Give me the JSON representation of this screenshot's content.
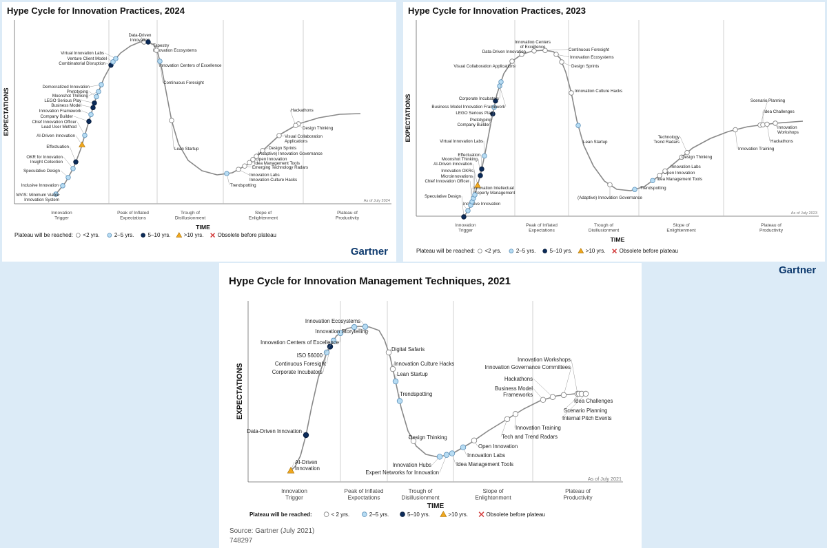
{
  "page_brand": "Gartner",
  "colors": {
    "lt2": "#ffffff",
    "y2_5": "#b7dcf3",
    "y5_10": "#0b2b59",
    "gt10": "#f0a81e",
    "obsolete": "#d23a3a",
    "curve": "#888888",
    "grid": "#bdbdbd"
  },
  "panels": [
    {
      "title": "Hype Cycle for Innovation Practices, 2024",
      "brand": "Gartner",
      "ylabel": "EXPECTATIONS",
      "xlabel": "TIME",
      "asof": "As of July 2024",
      "legend": {
        "title": "Plateau will be reached:",
        "items": [
          {
            "shape": "circle",
            "class": "lt2",
            "label": "<2 yrs."
          },
          {
            "shape": "circle",
            "class": "y2_5",
            "label": "2–5 yrs."
          },
          {
            "shape": "circle",
            "class": "y5_10",
            "label": "5–10 yrs."
          },
          {
            "shape": "triangle",
            "class": "gt10",
            "label": ">10 yrs."
          },
          {
            "shape": "x",
            "class": "obsolete",
            "label": "Obsolete before plateau"
          }
        ]
      },
      "phases": [
        "Innovation\nTrigger",
        "Peak of Inflated\nExpectations",
        "Trough of\nDisillusionment",
        "Slope of\nEnlightenment",
        "Plateau of\nProductivity"
      ],
      "points": [
        {
          "label": "MVIS: Minimum Viable\nInnovation System",
          "class": "y2_5"
        },
        {
          "label": "Inclusive Innovation",
          "class": "y2_5"
        },
        {
          "label": "Speculative Design",
          "class": "y2_5"
        },
        {
          "label": "OKR for Innovation\nInsight Collection",
          "class": "y2_5"
        },
        {
          "label": "Effectuation",
          "class": "y5_10"
        },
        {
          "label": "AI-Driven Innovation",
          "class": "gt10"
        },
        {
          "label": "Chief Innovation Officer\nLead User Method",
          "class": "y2_5"
        },
        {
          "label": "Company Builder",
          "class": "y5_10"
        },
        {
          "label": "Innovation Framework",
          "class": "y2_5"
        },
        {
          "label": "Business Model",
          "class": "y5_10"
        },
        {
          "label": "LEGO Serious Play",
          "class": "y5_10"
        },
        {
          "label": "Pretotyping",
          "class": "y2_5"
        },
        {
          "label": "Moonshot Thinking",
          "class": "y2_5"
        },
        {
          "label": "Democratized Innovation",
          "class": "y2_5"
        },
        {
          "label": "Combinatorial Disruption",
          "class": "y5_10"
        },
        {
          "label": "Venture Client Model",
          "class": "y2_5"
        },
        {
          "label": "Virtual Innovation Labs",
          "class": "y2_5"
        },
        {
          "label": "Data-Driven\nInnovation",
          "class": "lt2"
        },
        {
          "label": "Tapestry\nInnovation Ecosystems",
          "class": "y5_10"
        },
        {
          "label": "Innovation Centers of Excellence",
          "class": "lt2"
        },
        {
          "label": "Continuous Foresight",
          "class": "y2_5"
        },
        {
          "label": "Lean Startup",
          "class": "lt2"
        },
        {
          "label": "Trendspotting",
          "class": "y2_5"
        },
        {
          "label": "Innovation Labs\nInnovation Culture Hacks",
          "class": "lt2"
        },
        {
          "label": "Emerging Technology Radars",
          "class": "lt2"
        },
        {
          "label": "Idea Management Tools",
          "class": "lt2"
        },
        {
          "label": "Open Innovation",
          "class": "lt2"
        },
        {
          "label": "(Adaptive) Innovation Governance",
          "class": "lt2"
        },
        {
          "label": "Design Sprints",
          "class": "lt2"
        },
        {
          "label": "Visual Collaboration\nApplications",
          "class": "lt2"
        },
        {
          "label": "Design Thinking",
          "class": "lt2"
        },
        {
          "label": "Hackathons",
          "class": "lt2"
        }
      ]
    },
    {
      "title": "Hype Cycle for Innovation Practices, 2023",
      "brand": "Gartner",
      "ylabel": "EXPECTATIONS",
      "xlabel": "TIME",
      "asof": "As of July 2023",
      "legend": {
        "title": "Plateau will be reached:",
        "items": [
          {
            "shape": "circle",
            "class": "lt2",
            "label": "<2 yrs."
          },
          {
            "shape": "circle",
            "class": "y2_5",
            "label": "2–5 yrs."
          },
          {
            "shape": "circle",
            "class": "y5_10",
            "label": "5–10 yrs."
          },
          {
            "shape": "triangle",
            "class": "gt10",
            "label": ">10 yrs."
          },
          {
            "shape": "x",
            "class": "obsolete",
            "label": "Obsolete before plateau"
          }
        ]
      },
      "phases": [
        "Innovation\nTrigger",
        "Peak of Inflated\nExpectations",
        "Trough of\nDisillusionment",
        "Slope of\nEnlightenment",
        "Plateau of\nProductivity"
      ],
      "points": [
        {
          "label": "Speculative Design",
          "class": "y5_10"
        },
        {
          "label": "Inclusive Innovation",
          "class": "y2_5"
        },
        {
          "label": "Innovation Intellectual\nProperty Management",
          "class": "y2_5"
        },
        {
          "label": "Chief Innovation Officer",
          "class": "y2_5"
        },
        {
          "label": "Microinnovations",
          "class": "y2_5"
        },
        {
          "label": "Innovation OKRs",
          "class": "y2_5"
        },
        {
          "label": "AI-Driven Innovation",
          "class": "gt10"
        },
        {
          "label": "Moonshot Thinking",
          "class": "y5_10"
        },
        {
          "label": "Effectuation",
          "class": "y5_10"
        },
        {
          "label": "Virtual Innovation Labs",
          "class": "y2_5"
        },
        {
          "label": "Company Builder",
          "class": "y5_10"
        },
        {
          "label": "Pretotyping",
          "class": "y2_5"
        },
        {
          "label": "LEGO Serious Play",
          "class": "y5_10"
        },
        {
          "label": "Business Model Innovation Framework",
          "class": "y2_5"
        },
        {
          "label": "Corporate Incubators",
          "class": "y2_5"
        },
        {
          "label": "Visual Collaboration Applications",
          "class": "lt2"
        },
        {
          "label": "Data-Driven Innovation",
          "class": "lt2"
        },
        {
          "label": "Innovation Centers\nof Excellence",
          "class": "lt2"
        },
        {
          "label": "Continuous Foresight",
          "class": "lt2"
        },
        {
          "label": "Innovation Ecosystems",
          "class": "lt2"
        },
        {
          "label": "Design Sprints",
          "class": "lt2"
        },
        {
          "label": "Innovation Culture Hacks",
          "class": "lt2"
        },
        {
          "label": "Lean Startup",
          "class": "y2_5"
        },
        {
          "label": "(Adaptive) Innovation Governance",
          "class": "lt2"
        },
        {
          "label": "Trendspotting",
          "class": "y2_5"
        },
        {
          "label": "Idea Management Tools",
          "class": "y2_5"
        },
        {
          "label": "Open Innovation",
          "class": "lt2"
        },
        {
          "label": "Innovation Labs",
          "class": "lt2"
        },
        {
          "label": "Design Thinking",
          "class": "lt2"
        },
        {
          "label": "Technology\nTrend Radars",
          "class": "lt2"
        },
        {
          "label": "Innovation Training",
          "class": "lt2"
        },
        {
          "label": "Scenario Planning",
          "class": "lt2"
        },
        {
          "label": "Idea Challenges",
          "class": "lt2"
        },
        {
          "label": "Hackathons",
          "class": "lt2"
        },
        {
          "label": "Innovation\nWorkshops",
          "class": "lt2"
        }
      ]
    },
    {
      "title": "Hype Cycle for Innovation Management Techniques, 2021",
      "ylabel": "EXPECTATIONS",
      "xlabel": "TIME",
      "asof": "As of July 2021",
      "source": "Source: Gartner (July 2021)",
      "doc_id": "748297",
      "legend": {
        "title": "Plateau will be reached:",
        "items": [
          {
            "shape": "circle",
            "class": "lt2",
            "label": "< 2 yrs."
          },
          {
            "shape": "circle",
            "class": "y2_5",
            "label": "2–5 yrs."
          },
          {
            "shape": "circle",
            "class": "y5_10",
            "label": "5–10 yrs."
          },
          {
            "shape": "triangle",
            "class": "gt10",
            "label": ">10 yrs."
          },
          {
            "shape": "x",
            "class": "obsolete",
            "label": "Obsolete before plateau"
          }
        ]
      },
      "phases": [
        "Innovation\nTrigger",
        "Peak of Inflated\nExpectations",
        "Trough of\nDisillusionment",
        "Slope of\nEnlightenment",
        "Plateau of\nProductivity"
      ],
      "points": [
        {
          "label": "AI-Driven\nInnovation",
          "class": "gt10"
        },
        {
          "label": "Data-Driven Innovation",
          "class": "y5_10"
        },
        {
          "label": "Corporate Incubators",
          "class": "y2_5"
        },
        {
          "label": "Continuous Foresight",
          "class": "y5_10"
        },
        {
          "label": "ISO 56000",
          "class": "y2_5"
        },
        {
          "label": "Innovation Centers of Excellence",
          "class": "y2_5"
        },
        {
          "label": "Innovation Storytelling",
          "class": "y2_5"
        },
        {
          "label": "Innovation Ecosystems",
          "class": "y2_5"
        },
        {
          "label": "Digital Safaris",
          "class": "lt2"
        },
        {
          "label": "Innovation Culture Hacks",
          "class": "lt2"
        },
        {
          "label": "Lean Startup",
          "class": "y2_5"
        },
        {
          "label": "Trendspotting",
          "class": "y2_5"
        },
        {
          "label": "Design Thinking",
          "class": "lt2"
        },
        {
          "label": "Innovation Hubs",
          "class": "y2_5"
        },
        {
          "label": "Expert Networks for Innovation",
          "class": "y2_5"
        },
        {
          "label": "Idea Management Tools",
          "class": "y2_5"
        },
        {
          "label": "Innovation Labs",
          "class": "y2_5"
        },
        {
          "label": "Open Innovation",
          "class": "lt2"
        },
        {
          "label": "Tech and Trend Radars",
          "class": "lt2"
        },
        {
          "label": "Innovation Training",
          "class": "lt2"
        },
        {
          "label": "Business Model\nFrameworks",
          "class": "lt2"
        },
        {
          "label": "Hackathons",
          "class": "lt2"
        },
        {
          "label": "Innovation Governance Committees",
          "class": "lt2"
        },
        {
          "label": "Innovation Workshops",
          "class": "lt2"
        },
        {
          "label": "Idea Challenges",
          "class": "lt2"
        },
        {
          "label": "Scenario Planning",
          "class": "lt2"
        },
        {
          "label": "Internal Pitch Events",
          "class": "lt2"
        }
      ]
    }
  ]
}
